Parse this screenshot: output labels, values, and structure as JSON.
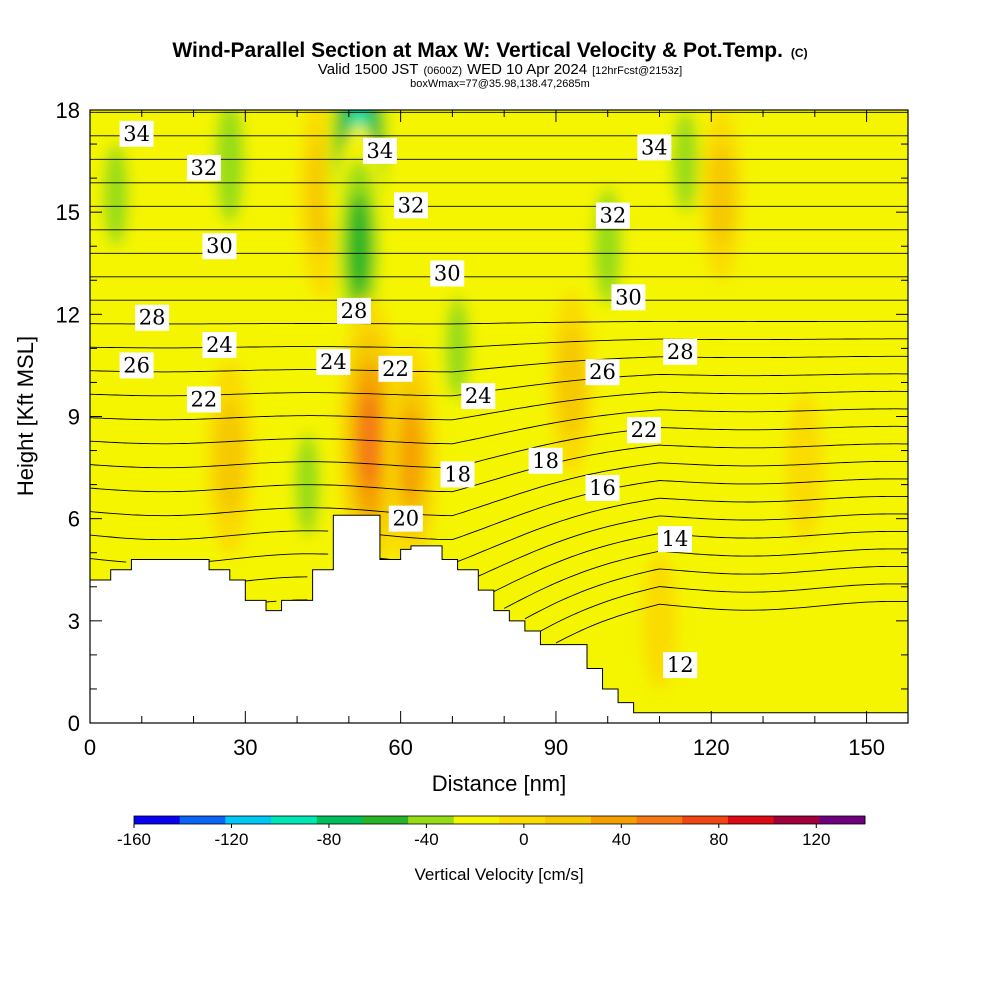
{
  "title": {
    "main": "Wind-Parallel Section at Max W: Vertical Velocity & Pot.Temp.",
    "copyright": "(C)",
    "valid_prefix": "Valid 1500 JST",
    "valid_utc": "(0600Z)",
    "valid_date": "WED 10 Apr 2024",
    "forecast": "[12hrFcst@2153z]",
    "box": "boxWmax=77@35.98,138.47,2685m"
  },
  "chart_data": {
    "type": "heatmap",
    "xlabel": "Distance [nm]",
    "ylabel": "Height [Kft MSL]",
    "xlim": [
      0,
      158
    ],
    "ylim": [
      0,
      18
    ],
    "x_ticks": [
      0,
      30,
      60,
      90,
      120,
      150
    ],
    "y_ticks": [
      0,
      3,
      6,
      9,
      12,
      15,
      18
    ],
    "colorbar": {
      "label": "Vertical Velocity [cm/s]",
      "range": [
        -160,
        140
      ],
      "step": 20,
      "tick_values": [
        -160,
        -120,
        -80,
        -40,
        0,
        40,
        80,
        120
      ],
      "colors": [
        "#0a00f0",
        "#0a64f5",
        "#00c8f5",
        "#00e6b4",
        "#00be5a",
        "#28b428",
        "#96dc14",
        "#f5f500",
        "#fadc00",
        "#f5c800",
        "#f5a000",
        "#f57814",
        "#f04614",
        "#dc0a14",
        "#a0003c",
        "#6e007d"
      ]
    },
    "terrain_top_kft": [
      [
        0,
        4.2
      ],
      [
        1,
        4.2
      ],
      [
        3,
        4.2
      ],
      [
        4,
        4.5
      ],
      [
        7,
        4.5
      ],
      [
        8,
        4.8
      ],
      [
        22,
        4.8
      ],
      [
        23,
        4.5
      ],
      [
        26,
        4.5
      ],
      [
        27,
        4.2
      ],
      [
        29,
        4.2
      ],
      [
        30,
        3.6
      ],
      [
        33,
        3.6
      ],
      [
        34,
        3.3
      ],
      [
        36,
        3.3
      ],
      [
        37,
        3.6
      ],
      [
        42,
        3.6
      ],
      [
        43,
        4.5
      ],
      [
        46,
        4.5
      ],
      [
        47,
        6.1
      ],
      [
        55,
        6.1
      ],
      [
        56,
        4.8
      ],
      [
        59,
        4.8
      ],
      [
        60,
        5.1
      ],
      [
        61,
        5.1
      ],
      [
        62,
        5.2
      ],
      [
        67,
        5.2
      ],
      [
        68,
        4.8
      ],
      [
        70,
        4.8
      ],
      [
        71,
        4.5
      ],
      [
        74,
        4.5
      ],
      [
        75,
        3.9
      ],
      [
        77,
        3.9
      ],
      [
        78,
        3.3
      ],
      [
        80,
        3.3
      ],
      [
        81,
        3.0
      ],
      [
        83,
        3.0
      ],
      [
        84,
        2.7
      ],
      [
        86,
        2.7
      ],
      [
        87,
        2.3
      ],
      [
        95,
        2.3
      ],
      [
        96,
        1.6
      ],
      [
        98,
        1.6
      ],
      [
        99,
        1.0
      ],
      [
        101,
        1.0
      ],
      [
        102,
        0.6
      ],
      [
        104,
        0.6
      ],
      [
        105,
        0.3
      ],
      [
        158,
        0.3
      ]
    ],
    "vv_cores_cms": [
      {
        "x": 5,
        "y": 15.5,
        "value": -30
      },
      {
        "x": 27,
        "y": 16.5,
        "value": -45
      },
      {
        "x": 45,
        "y": 15.5,
        "value": 45
      },
      {
        "x": 52,
        "y": 17.0,
        "value": -90
      },
      {
        "x": 52,
        "y": 14.0,
        "value": -60
      },
      {
        "x": 54,
        "y": 8.3,
        "value": 77
      },
      {
        "x": 62,
        "y": 7.8,
        "value": 55
      },
      {
        "x": 27,
        "y": 7.8,
        "value": 40
      },
      {
        "x": 42,
        "y": 7.0,
        "value": -30
      },
      {
        "x": 71,
        "y": 11.0,
        "value": -30
      },
      {
        "x": 93,
        "y": 10.0,
        "value": 35
      },
      {
        "x": 100,
        "y": 14.0,
        "value": -40
      },
      {
        "x": 115,
        "y": 16.5,
        "value": -30
      },
      {
        "x": 122,
        "y": 15.5,
        "value": 30
      },
      {
        "x": 110,
        "y": 3.0,
        "value": 15
      },
      {
        "x": 138,
        "y": 7.5,
        "value": 20
      }
    ],
    "theta_contour_interval": 1,
    "theta_labels": [
      {
        "text": "34",
        "x": 9,
        "y": 17.3
      },
      {
        "text": "32",
        "x": 22,
        "y": 16.3
      },
      {
        "text": "30",
        "x": 25,
        "y": 14.0
      },
      {
        "text": "28",
        "x": 12,
        "y": 11.9
      },
      {
        "text": "26",
        "x": 9,
        "y": 10.5
      },
      {
        "text": "24",
        "x": 25,
        "y": 11.1
      },
      {
        "text": "22",
        "x": 22,
        "y": 9.5
      },
      {
        "text": "34",
        "x": 56,
        "y": 16.8
      },
      {
        "text": "32",
        "x": 62,
        "y": 15.2
      },
      {
        "text": "30",
        "x": 69,
        "y": 13.2
      },
      {
        "text": "28",
        "x": 51,
        "y": 12.1
      },
      {
        "text": "24",
        "x": 47,
        "y": 10.6
      },
      {
        "text": "22",
        "x": 59,
        "y": 10.4
      },
      {
        "text": "24",
        "x": 75,
        "y": 9.6
      },
      {
        "text": "18",
        "x": 71,
        "y": 7.3
      },
      {
        "text": "18",
        "x": 88,
        "y": 7.7
      },
      {
        "text": "20",
        "x": 61,
        "y": 6.0
      },
      {
        "text": "34",
        "x": 109,
        "y": 16.9
      },
      {
        "text": "32",
        "x": 101,
        "y": 14.9
      },
      {
        "text": "30",
        "x": 104,
        "y": 12.5
      },
      {
        "text": "26",
        "x": 99,
        "y": 10.3
      },
      {
        "text": "28",
        "x": 114,
        "y": 10.9
      },
      {
        "text": "22",
        "x": 107,
        "y": 8.6
      },
      {
        "text": "16",
        "x": 99,
        "y": 6.9
      },
      {
        "text": "14",
        "x": 113,
        "y": 5.4
      },
      {
        "text": "12",
        "x": 114,
        "y": 1.7
      }
    ]
  }
}
